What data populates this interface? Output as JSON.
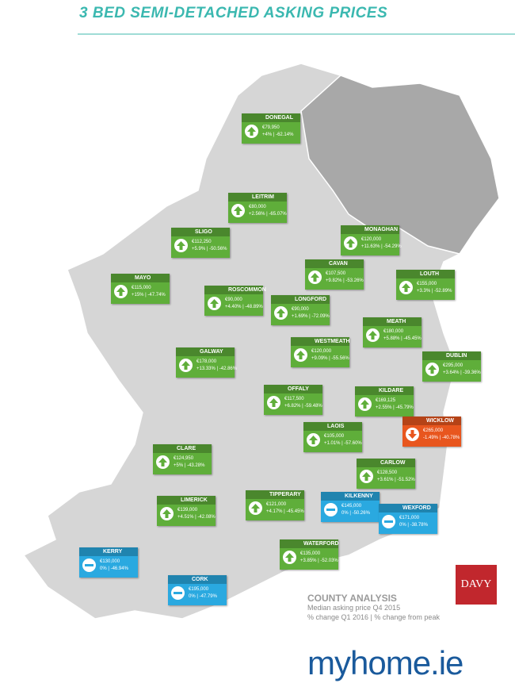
{
  "header": {
    "title": "3 BED SEMI-DETACHED ASKING PRICES"
  },
  "counties": [
    {
      "name": "DONEGAL",
      "price": "€79,950",
      "change": "+4% | -62.14%",
      "trend": "up",
      "color": "#5fae3a"
    },
    {
      "name": "LEITRIM",
      "price": "€80,000",
      "change": "+2.56% | -65.07%",
      "trend": "up",
      "color": "#5fae3a"
    },
    {
      "name": "SLIGO",
      "price": "€112,250",
      "change": "+5.9% | -50.56%",
      "trend": "up",
      "color": "#5fae3a"
    },
    {
      "name": "MONAGHAN",
      "price": "€120,000",
      "change": "+11.63% | -54.29%",
      "trend": "up",
      "color": "#5fae3a"
    },
    {
      "name": "CAVAN",
      "price": "€107,500",
      "change": "+9.82% | -53.26%",
      "trend": "up",
      "color": "#5fae3a"
    },
    {
      "name": "MAYO",
      "price": "€115,000",
      "change": "+15% | -47.74%",
      "trend": "up",
      "color": "#5fae3a"
    },
    {
      "name": "ROSCOMMON",
      "price": "€90,000",
      "change": "+4.40% | -48.89%",
      "trend": "up",
      "color": "#5fae3a"
    },
    {
      "name": "LONGFORD",
      "price": "€90,000",
      "change": "+1.69% | -72.09%",
      "trend": "up",
      "color": "#5fae3a"
    },
    {
      "name": "LOUTH",
      "price": "€155,000",
      "change": "+3.3% | -52.89%",
      "trend": "up",
      "color": "#5fae3a"
    },
    {
      "name": "MEATH",
      "price": "€180,000",
      "change": "+5.88% | -45.45%",
      "trend": "up",
      "color": "#5fae3a"
    },
    {
      "name": "WESTMEATH",
      "price": "€120,000",
      "change": "+9.09% | -55.56%",
      "trend": "up",
      "color": "#5fae3a"
    },
    {
      "name": "GALWAY",
      "price": "€178,000",
      "change": "+13.33% | -42.86%",
      "trend": "up",
      "color": "#5fae3a"
    },
    {
      "name": "DUBLIN",
      "price": "€295,000",
      "change": "+3.64% | -39.36%",
      "trend": "up",
      "color": "#5fae3a"
    },
    {
      "name": "OFFALY",
      "price": "€117,500",
      "change": "+6.82% | -59.48%",
      "trend": "up",
      "color": "#5fae3a"
    },
    {
      "name": "KILDARE",
      "price": "€169,125",
      "change": "+2.55% | -45.79%",
      "trend": "up",
      "color": "#5fae3a"
    },
    {
      "name": "LAOIS",
      "price": "€105,000",
      "change": "+1.01% | -57.60%",
      "trend": "up",
      "color": "#5fae3a"
    },
    {
      "name": "WICKLOW",
      "price": "€265,000",
      "change": "-1.49% | -40.78%",
      "trend": "down",
      "color": "#e8561e"
    },
    {
      "name": "CLARE",
      "price": "€124,950",
      "change": "+5% | -43.28%",
      "trend": "up",
      "color": "#5fae3a"
    },
    {
      "name": "CARLOW",
      "price": "€128,500",
      "change": "+3.61% | -51.52%",
      "trend": "up",
      "color": "#5fae3a"
    },
    {
      "name": "TIPPERARY",
      "price": "€121,000",
      "change": "+4.17% | -45.45%",
      "trend": "up",
      "color": "#5fae3a"
    },
    {
      "name": "LIMERICK",
      "price": "€139,000",
      "change": "+4.51% | -42.08%",
      "trend": "up",
      "color": "#5fae3a"
    },
    {
      "name": "KILKENNY",
      "price": "€145,000",
      "change": "0% | -50.26%",
      "trend": "flat",
      "color": "#2aa9e0"
    },
    {
      "name": "WEXFORD",
      "price": "€171,000",
      "change": "0% | -38.78%",
      "trend": "flat",
      "color": "#2aa9e0"
    },
    {
      "name": "WATERFORD",
      "price": "€135,000",
      "change": "+3.85% | -52.03%",
      "trend": "up",
      "color": "#5fae3a"
    },
    {
      "name": "KERRY",
      "price": "€130,000",
      "change": "0% | -46.94%",
      "trend": "flat",
      "color": "#2aa9e0"
    },
    {
      "name": "CORK",
      "price": "€195,000",
      "change": "0% | -47.79%",
      "trend": "flat",
      "color": "#2aa9e0"
    }
  ],
  "legend": {
    "title": "COUNTY ANALYSIS",
    "line1": "Median asking price Q4 2015",
    "line2": "% change Q1 2016  |  % change from peak"
  },
  "logos": {
    "davy": "DAVY",
    "site": "myhome.ie"
  }
}
